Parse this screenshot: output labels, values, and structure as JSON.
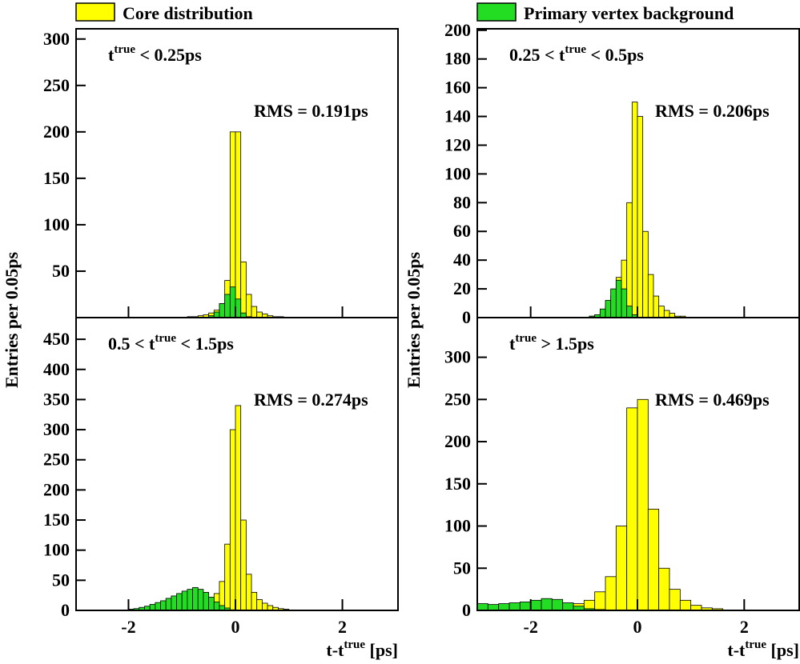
{
  "legend": [
    {
      "name": "Core distribution",
      "color": "#ffff00"
    },
    {
      "name": "Primary vertex background",
      "color": "#22dd22"
    }
  ],
  "ylabel": "Entries per 0.05ps",
  "xlabel": {
    "pre": "t-t",
    "sup": "true",
    "post": " [ps]"
  },
  "chart_data": [
    {
      "type": "histogram",
      "annotation": {
        "pre": "t",
        "sup": "true",
        "post": " < 0.25ps"
      },
      "rms": "RMS = 0.191ps",
      "xlim": [
        -2.98,
        3.04
      ],
      "xticks": [
        -2,
        0,
        2
      ],
      "show_xtick_labels": false,
      "ylim": [
        0,
        311
      ],
      "yticks": [
        50,
        100,
        150,
        200,
        250,
        300
      ],
      "bins": [
        -1.0,
        -0.9,
        -0.8,
        -0.7,
        -0.6,
        -0.5,
        -0.4,
        -0.3,
        -0.2,
        -0.1,
        0.0,
        0.1,
        0.2,
        0.3,
        0.4,
        0.5,
        0.6,
        0.7,
        0.8,
        0.9,
        1.0
      ],
      "series": [
        {
          "color": "#ffff00",
          "values": [
            0,
            1,
            1,
            2,
            3,
            5,
            8,
            15,
            40,
            200,
            200,
            60,
            25,
            12,
            6,
            4,
            2,
            1,
            1,
            0
          ]
        },
        {
          "color": "#22dd22",
          "values": [
            0,
            0,
            0,
            0,
            0,
            2,
            6,
            15,
            25,
            33,
            20,
            5,
            1,
            0,
            0,
            0,
            0,
            0,
            0,
            0
          ]
        }
      ]
    },
    {
      "type": "histogram",
      "annotation": {
        "pre": "0.25 < t",
        "sup": "true",
        "post": " < 0.5ps"
      },
      "rms": "RMS = 0.206ps",
      "xlim": [
        -3.0,
        3.03
      ],
      "xticks": [
        -2,
        0,
        2
      ],
      "show_xtick_labels": false,
      "ylim": [
        0,
        201
      ],
      "yticks": [
        0,
        20,
        40,
        60,
        80,
        100,
        120,
        140,
        160,
        180,
        200
      ],
      "bins": [
        -1.0,
        -0.9,
        -0.8,
        -0.7,
        -0.6,
        -0.5,
        -0.4,
        -0.3,
        -0.2,
        -0.1,
        0.0,
        0.1,
        0.2,
        0.3,
        0.4,
        0.5,
        0.6,
        0.7,
        0.8,
        0.9,
        1.0
      ],
      "series": [
        {
          "color": "#ffff00",
          "values": [
            0,
            1,
            2,
            4,
            8,
            15,
            28,
            40,
            80,
            150,
            140,
            60,
            30,
            15,
            8,
            5,
            3,
            1,
            1,
            0
          ]
        },
        {
          "color": "#22dd22",
          "values": [
            0,
            1,
            2,
            6,
            12,
            20,
            26,
            20,
            8,
            2,
            0,
            0,
            0,
            0,
            0,
            0,
            0,
            0,
            0,
            0
          ]
        }
      ]
    },
    {
      "type": "histogram",
      "annotation": {
        "pre": "0.5 < t",
        "sup": "true",
        "post": " < 1.5ps"
      },
      "rms": "RMS = 0.274ps",
      "xlim": [
        -2.98,
        3.04
      ],
      "xticks": [
        -2,
        0,
        2
      ],
      "show_xtick_labels": true,
      "ylim": [
        0,
        486
      ],
      "yticks": [
        0,
        50,
        100,
        150,
        200,
        250,
        300,
        350,
        400,
        450
      ],
      "bins": [
        -2.0,
        -1.9,
        -1.8,
        -1.7,
        -1.6,
        -1.5,
        -1.4,
        -1.3,
        -1.2,
        -1.1,
        -1.0,
        -0.9,
        -0.8,
        -0.7,
        -0.6,
        -0.5,
        -0.4,
        -0.3,
        -0.2,
        -0.1,
        0.0,
        0.1,
        0.2,
        0.3,
        0.4,
        0.5,
        0.6,
        0.7,
        0.8,
        0.9,
        1.0
      ],
      "series": [
        {
          "color": "#ffff00",
          "values": [
            1,
            1,
            2,
            2,
            3,
            3,
            4,
            4,
            5,
            6,
            7,
            8,
            10,
            12,
            14,
            18,
            28,
            48,
            110,
            300,
            340,
            150,
            60,
            30,
            18,
            12,
            8,
            5,
            3,
            2
          ]
        },
        {
          "color": "#22dd22",
          "values": [
            2,
            3,
            5,
            7,
            10,
            13,
            16,
            20,
            24,
            28,
            32,
            35,
            38,
            35,
            30,
            22,
            14,
            8,
            4,
            1,
            0,
            0,
            0,
            0,
            0,
            0,
            0,
            0,
            0,
            0
          ]
        }
      ]
    },
    {
      "type": "histogram",
      "annotation": {
        "pre": "t",
        "sup": "true",
        "post": " > 1.5ps"
      },
      "rms": "RMS = 0.469ps",
      "xlim": [
        -3.0,
        3.03
      ],
      "xticks": [
        -2,
        0,
        2
      ],
      "show_xtick_labels": true,
      "ylim": [
        0,
        347
      ],
      "yticks": [
        0,
        50,
        100,
        150,
        200,
        250,
        300
      ],
      "bins": [
        -3.0,
        -2.8,
        -2.6,
        -2.4,
        -2.2,
        -2.0,
        -1.8,
        -1.6,
        -1.4,
        -1.2,
        -1.0,
        -0.8,
        -0.6,
        -0.4,
        -0.2,
        0.0,
        0.2,
        0.4,
        0.6,
        0.8,
        1.0,
        1.2,
        1.4,
        1.6
      ],
      "series": [
        {
          "color": "#ffff00",
          "values": [
            2,
            2,
            3,
            3,
            3,
            4,
            4,
            5,
            6,
            8,
            12,
            22,
            40,
            100,
            240,
            250,
            120,
            50,
            25,
            12,
            6,
            3,
            2
          ]
        },
        {
          "color": "#22dd22",
          "values": [
            8,
            7,
            8,
            9,
            10,
            12,
            14,
            13,
            9,
            5,
            2,
            1,
            0,
            0,
            0,
            0,
            0,
            0,
            0,
            0,
            0,
            0,
            0
          ]
        }
      ]
    }
  ]
}
